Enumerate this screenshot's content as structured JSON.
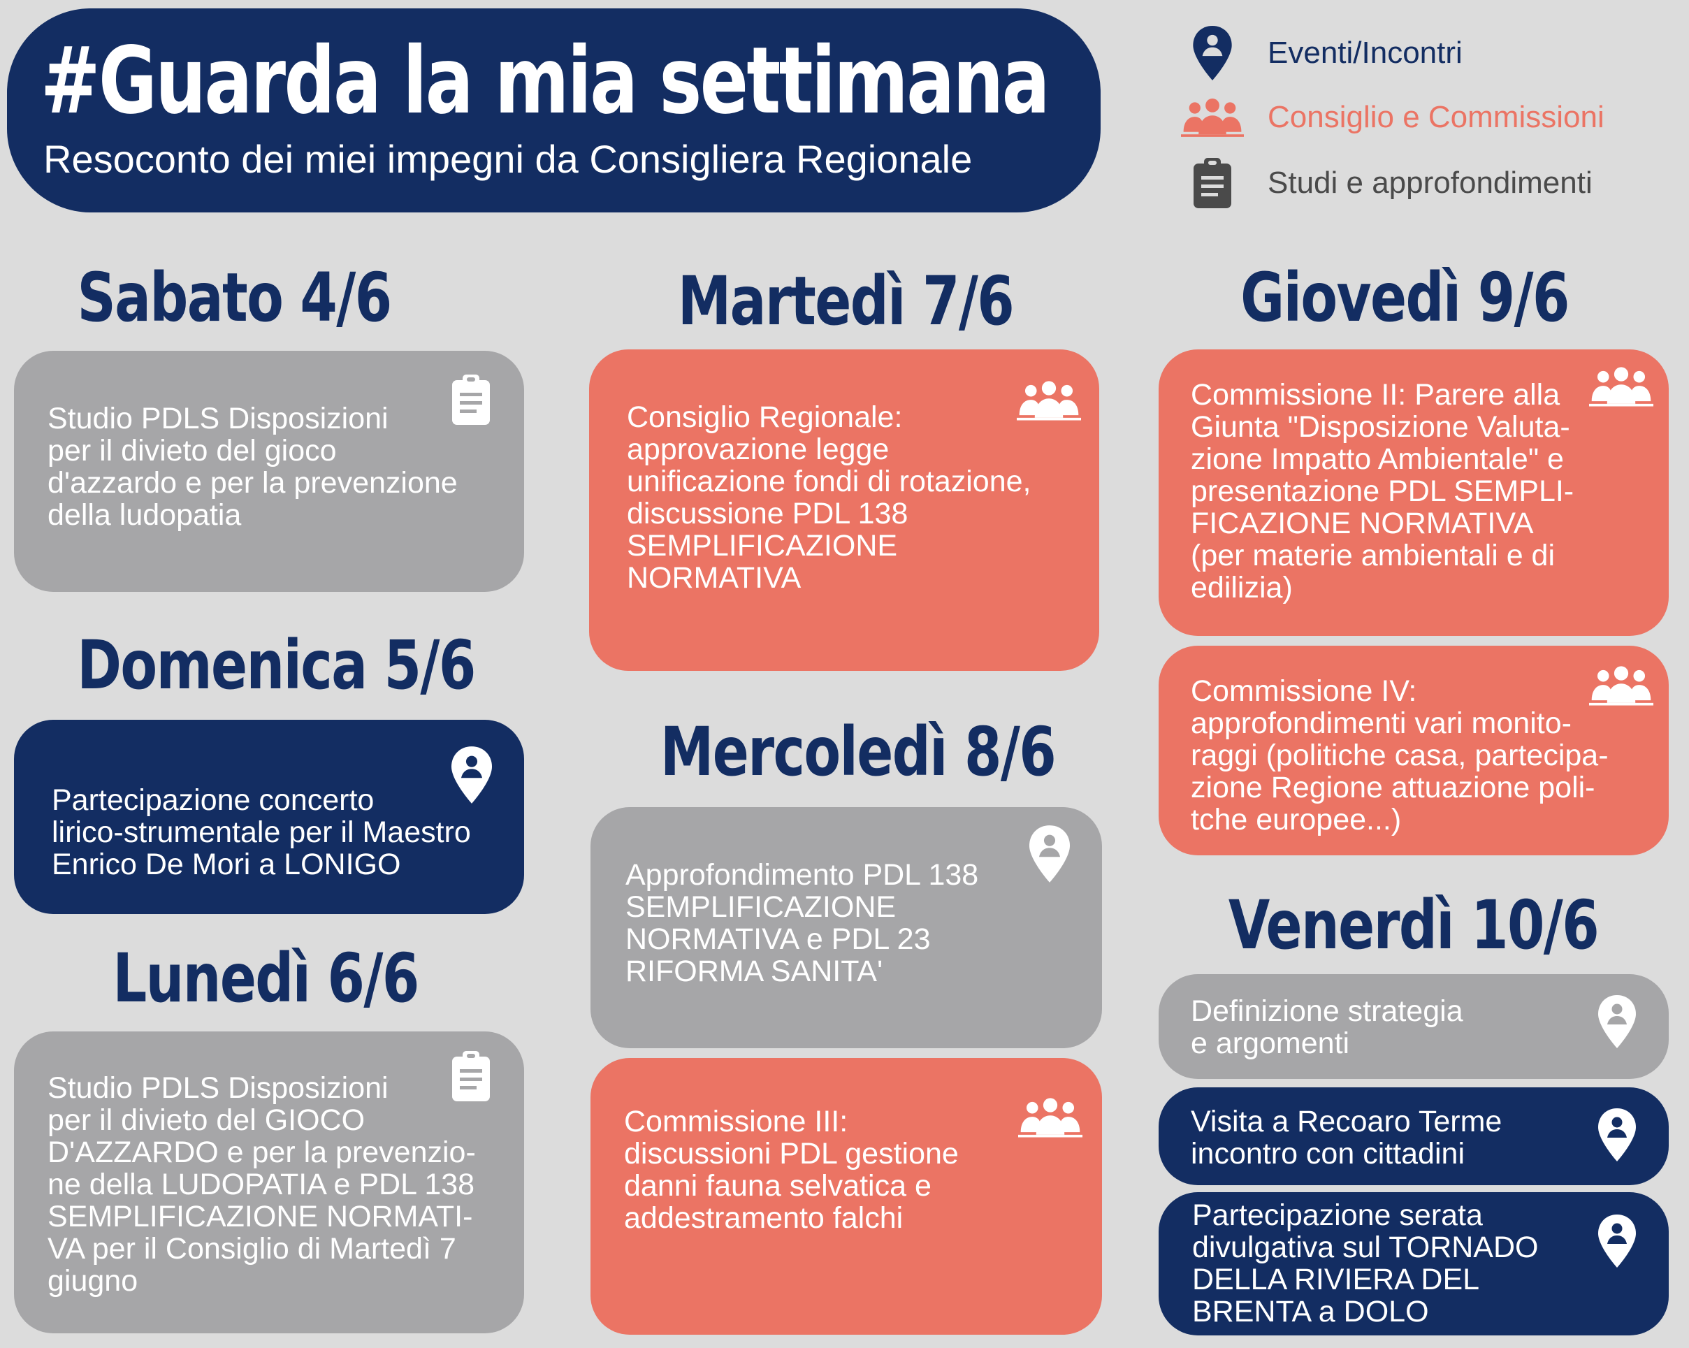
{
  "header": {
    "title": "#Guarda la mia settimana",
    "subtitle": "Resoconto dei miei impegni da Consigliera Regionale"
  },
  "legend": [
    {
      "label": "Eventi/Incontri",
      "icon": "location-person-icon",
      "color": "#132d62"
    },
    {
      "label": "Consiglio e Commissioni",
      "icon": "group-icon",
      "color": "#eb7464"
    },
    {
      "label": "Studi e approfondimenti",
      "icon": "clipboard-icon",
      "color": "#4a4a4a"
    }
  ],
  "colors": {
    "background": "#dcdcdc",
    "navy": "#132d62",
    "salmon": "#eb7464",
    "gray": "#a6a6a8"
  },
  "days": [
    {
      "heading": "Sabato 4/6",
      "events": [
        {
          "category": "Studi e approfondimenti",
          "icon": "clipboard-icon",
          "lines": [
            "Studio PDLS Disposizioni",
            "per il divieto del gioco",
            "d'azzardo e per la prevenzione",
            "della ludopatia"
          ]
        }
      ]
    },
    {
      "heading": "Domenica 5/6",
      "events": [
        {
          "category": "Eventi/Incontri",
          "icon": "location-person-icon",
          "lines": [
            "Partecipazione concerto",
            "lirico-strumentale per il Maestro",
            "Enrico De Mori a LONIGO"
          ]
        }
      ]
    },
    {
      "heading": "Lunedì 6/6",
      "events": [
        {
          "category": "Studi e approfondimenti",
          "icon": "clipboard-icon",
          "lines": [
            "Studio PDLS Disposizioni",
            "per il divieto del GIOCO",
            "D'AZZARDO e per la prevenzio-",
            "ne della LUDOPATIA e PDL 138",
            "SEMPLIFICAZIONE NORMATI-",
            "VA per il Consiglio di Martedì 7",
            "giugno"
          ]
        }
      ]
    },
    {
      "heading": "Martedì 7/6",
      "events": [
        {
          "category": "Consiglio e Commissioni",
          "icon": "group-icon",
          "lines": [
            "Consiglio Regionale:",
            "approvazione legge",
            "unificazione fondi di rotazione,",
            "discussione PDL 138",
            "SEMPLIFICAZIONE",
            "NORMATIVA"
          ]
        }
      ]
    },
    {
      "heading": "Mercoledì 8/6",
      "events": [
        {
          "category": "Studi e approfondimenti",
          "icon": "location-person-icon",
          "lines": [
            "Approfondimento PDL 138",
            "SEMPLIFICAZIONE",
            "NORMATIVA e PDL 23",
            "RIFORMA SANITA'"
          ]
        },
        {
          "category": "Consiglio e Commissioni",
          "icon": "group-icon",
          "lines": [
            "Commissione III:",
            "discussioni PDL gestione",
            "danni fauna selvatica e",
            "addestramento falchi"
          ]
        }
      ]
    },
    {
      "heading": "Giovedì 9/6",
      "events": [
        {
          "category": "Consiglio e Commissioni",
          "icon": "group-icon",
          "lines": [
            "Commissione II: Parere alla",
            "Giunta \"Disposizione Valuta-",
            "zione Impatto Ambientale\" e",
            "presentazione PDL SEMPLI-",
            "FICAZIONE NORMATIVA",
            "(per materie ambientali e di",
            "edilizia)"
          ]
        },
        {
          "category": "Consiglio e Commissioni",
          "icon": "group-icon",
          "lines": [
            "Commissione IV:",
            "approfondimenti vari monito-",
            "raggi (politiche casa, partecipa-",
            "zione Regione attuazione poli-",
            "tche europee...)"
          ]
        }
      ]
    },
    {
      "heading": "Venerdì 10/6",
      "events": [
        {
          "category": "Studi e approfondimenti",
          "icon": "location-person-icon",
          "lines": [
            "Definizione strategia",
            "e argomenti"
          ]
        },
        {
          "category": "Eventi/Incontri",
          "icon": "location-person-icon",
          "lines": [
            "Visita a Recoaro Terme",
            "incontro con cittadini"
          ]
        },
        {
          "category": "Eventi/Incontri",
          "icon": "location-person-icon",
          "lines": [
            "Partecipazione serata",
            "divulgativa sul TORNADO",
            "DELLA RIVIERA DEL",
            "BRENTA a DOLO"
          ]
        }
      ]
    }
  ]
}
